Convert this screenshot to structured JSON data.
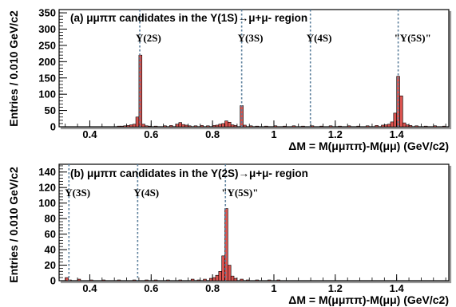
{
  "chart_data": [
    {
      "type": "bar",
      "title": "(a) μμππ candidates in the Υ(1S)→μ+μ- region",
      "xlabel": "ΔM = M(μμππ)-M(μμ) (GeV/c2)",
      "ylabel": "Entries / 0.010 GeV/c2",
      "xlim": [
        0.3,
        1.57
      ],
      "ylim": [
        0,
        360
      ],
      "xticks": [
        0.4,
        0.6,
        0.8,
        1.0,
        1.2,
        1.4
      ],
      "xtick_labels": [
        "0.4",
        "0.6",
        "0.8",
        "1",
        "1.2",
        "1.4"
      ],
      "yticks": [
        0,
        50,
        100,
        150,
        200,
        250,
        300,
        350
      ],
      "bin_width": 0.01,
      "bars": [
        {
          "x": 0.495,
          "y": 2
        },
        {
          "x": 0.505,
          "y": 2
        },
        {
          "x": 0.515,
          "y": 3
        },
        {
          "x": 0.525,
          "y": 4
        },
        {
          "x": 0.535,
          "y": 6
        },
        {
          "x": 0.545,
          "y": 8
        },
        {
          "x": 0.555,
          "y": 30
        },
        {
          "x": 0.565,
          "y": 220
        },
        {
          "x": 0.575,
          "y": 8
        },
        {
          "x": 0.585,
          "y": 3
        },
        {
          "x": 0.595,
          "y": 2
        },
        {
          "x": 0.615,
          "y": 2
        },
        {
          "x": 0.645,
          "y": 3
        },
        {
          "x": 0.665,
          "y": 4
        },
        {
          "x": 0.685,
          "y": 8
        },
        {
          "x": 0.695,
          "y": 13
        },
        {
          "x": 0.705,
          "y": 7
        },
        {
          "x": 0.715,
          "y": 5
        },
        {
          "x": 0.725,
          "y": 3
        },
        {
          "x": 0.745,
          "y": 3
        },
        {
          "x": 0.765,
          "y": 4
        },
        {
          "x": 0.785,
          "y": 3
        },
        {
          "x": 0.805,
          "y": 4
        },
        {
          "x": 0.815,
          "y": 5
        },
        {
          "x": 0.825,
          "y": 8
        },
        {
          "x": 0.835,
          "y": 10
        },
        {
          "x": 0.845,
          "y": 18
        },
        {
          "x": 0.855,
          "y": 14
        },
        {
          "x": 0.865,
          "y": 6
        },
        {
          "x": 0.875,
          "y": 4
        },
        {
          "x": 0.895,
          "y": 65
        },
        {
          "x": 0.905,
          "y": 5
        },
        {
          "x": 0.925,
          "y": 3
        },
        {
          "x": 0.945,
          "y": 2
        },
        {
          "x": 0.975,
          "y": 2
        },
        {
          "x": 1.005,
          "y": 3
        },
        {
          "x": 1.035,
          "y": 2
        },
        {
          "x": 1.065,
          "y": 3
        },
        {
          "x": 1.095,
          "y": 2
        },
        {
          "x": 1.125,
          "y": 3
        },
        {
          "x": 1.155,
          "y": 2
        },
        {
          "x": 1.185,
          "y": 3
        },
        {
          "x": 1.215,
          "y": 2
        },
        {
          "x": 1.245,
          "y": 3
        },
        {
          "x": 1.275,
          "y": 2
        },
        {
          "x": 1.305,
          "y": 3
        },
        {
          "x": 1.335,
          "y": 4
        },
        {
          "x": 1.355,
          "y": 5
        },
        {
          "x": 1.365,
          "y": 6
        },
        {
          "x": 1.375,
          "y": 8
        },
        {
          "x": 1.385,
          "y": 15
        },
        {
          "x": 1.395,
          "y": 42
        },
        {
          "x": 1.405,
          "y": 155
        },
        {
          "x": 1.415,
          "y": 95
        },
        {
          "x": 1.425,
          "y": 12
        },
        {
          "x": 1.435,
          "y": 6
        },
        {
          "x": 1.445,
          "y": 4
        },
        {
          "x": 1.465,
          "y": 3
        },
        {
          "x": 1.495,
          "y": 2
        },
        {
          "x": 1.525,
          "y": 3
        },
        {
          "x": 1.555,
          "y": 2
        }
      ],
      "lines": [
        {
          "x": 0.563,
          "label": "Υ(2S)"
        },
        {
          "x": 0.895,
          "label": "Υ(3S)"
        },
        {
          "x": 1.119,
          "label": "Υ(4S)"
        },
        {
          "x": 1.405,
          "label": "\"Υ(5S)\""
        }
      ]
    },
    {
      "type": "bar",
      "title": "(b) μμππ candidates in the Υ(2S)→μ+μ- region",
      "xlabel": "ΔM = M(μμππ)-M(μμ) (GeV/c2)",
      "ylabel": "Entries / 0.010 GeV/c2",
      "xlim": [
        0.3,
        1.57
      ],
      "ylim": [
        0,
        150
      ],
      "xticks": [
        0.4,
        0.6,
        0.8,
        1.0,
        1.2,
        1.4
      ],
      "xtick_labels": [
        "0.4",
        "0.6",
        "0.8",
        "1",
        "1.2",
        "1.4"
      ],
      "yticks": [
        0,
        20,
        40,
        60,
        80,
        100,
        120,
        140
      ],
      "bin_width": 0.01,
      "bars": [
        {
          "x": 0.325,
          "y": 4
        },
        {
          "x": 0.335,
          "y": 1
        },
        {
          "x": 0.365,
          "y": 2
        },
        {
          "x": 0.405,
          "y": 1
        },
        {
          "x": 0.445,
          "y": 1
        },
        {
          "x": 0.495,
          "y": 1
        },
        {
          "x": 0.545,
          "y": 1
        },
        {
          "x": 0.585,
          "y": 1
        },
        {
          "x": 0.615,
          "y": 1
        },
        {
          "x": 0.655,
          "y": 1
        },
        {
          "x": 0.695,
          "y": 1
        },
        {
          "x": 0.735,
          "y": 2
        },
        {
          "x": 0.755,
          "y": 1
        },
        {
          "x": 0.775,
          "y": 2
        },
        {
          "x": 0.795,
          "y": 3
        },
        {
          "x": 0.805,
          "y": 4
        },
        {
          "x": 0.815,
          "y": 7
        },
        {
          "x": 0.825,
          "y": 12
        },
        {
          "x": 0.835,
          "y": 32
        },
        {
          "x": 0.845,
          "y": 93
        },
        {
          "x": 0.855,
          "y": 20
        },
        {
          "x": 0.865,
          "y": 6
        },
        {
          "x": 0.875,
          "y": 3
        },
        {
          "x": 0.895,
          "y": 2
        },
        {
          "x": 0.915,
          "y": 1
        },
        {
          "x": 0.945,
          "y": 1
        },
        {
          "x": 0.985,
          "y": 1
        },
        {
          "x": 1.015,
          "y": 1
        }
      ],
      "lines": [
        {
          "x": 0.332,
          "label": "Υ(3S)"
        },
        {
          "x": 0.556,
          "label": "Υ(4S)"
        },
        {
          "x": 0.842,
          "label": "\"Υ(5S)\""
        }
      ]
    }
  ]
}
